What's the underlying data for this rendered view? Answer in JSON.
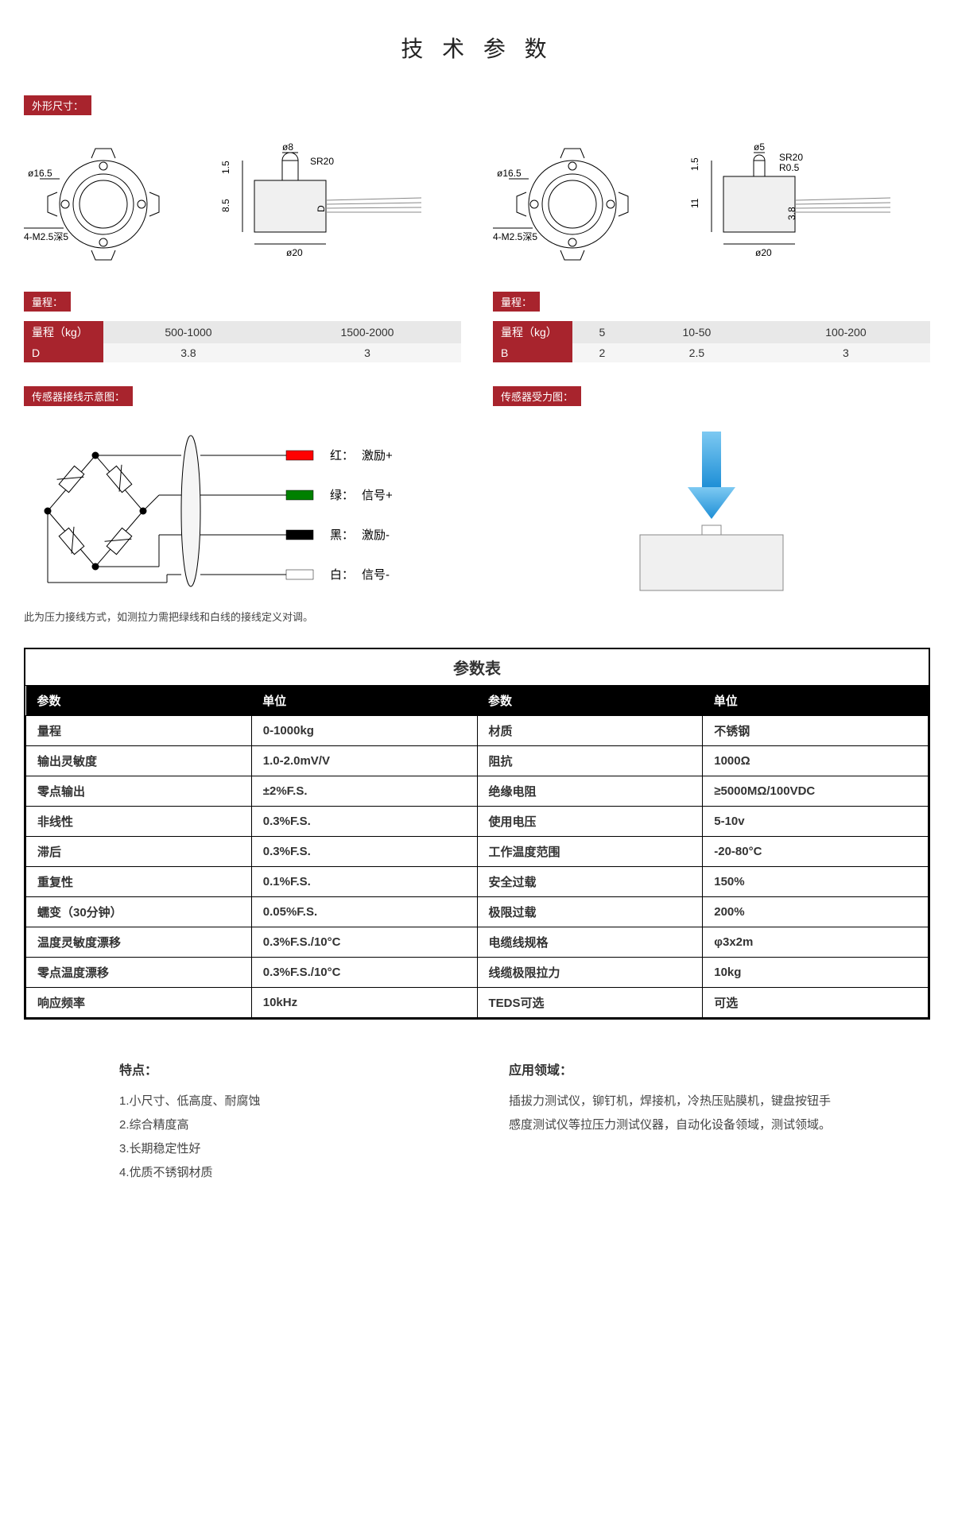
{
  "title": "技 术 参 数",
  "tags": {
    "dimensions": "外形尺寸：",
    "range": "量程：",
    "wiring": "传感器接线示意图：",
    "force": "传感器受力图："
  },
  "diagram_labels": {
    "d16_5": "ø16.5",
    "m25": "4-M2.5深5",
    "d8": "ø8",
    "d5": "ø5",
    "sr20": "SR20",
    "r05": "R0.5",
    "d20": "ø20",
    "n1_5": "1.5",
    "n8_5": "8.5",
    "n11": "11",
    "n3_8": "3.8",
    "D": "D",
    "B": "B"
  },
  "range_left": {
    "header_label": "量程（kg）",
    "row1": [
      "500-1000",
      "1500-2000"
    ],
    "row2_label": "D",
    "row2": [
      "3.8",
      "3"
    ]
  },
  "range_right": {
    "header_label": "量程（kg）",
    "row1": [
      "5",
      "10-50",
      "100-200"
    ],
    "row2_label": "B",
    "row2": [
      "2",
      "2.5",
      "3"
    ]
  },
  "wiring": {
    "items": [
      {
        "color": "#ff0000",
        "name": "红：",
        "label": "激励+"
      },
      {
        "color": "#008000",
        "name": "绿：",
        "label": "信号+"
      },
      {
        "color": "#000000",
        "name": "黑：",
        "label": "激励-"
      },
      {
        "color": "#ffffff",
        "name": "白：",
        "label": "信号-"
      }
    ],
    "note": "此为压力接线方式，如测拉力需把绿线和白线的接线定义对调。"
  },
  "param_table": {
    "title": "参数表",
    "headers": [
      "参数",
      "单位",
      "参数",
      "单位"
    ],
    "rows": [
      [
        "量程",
        "0-1000kg",
        "材质",
        "不锈钢"
      ],
      [
        "输出灵敏度",
        "1.0-2.0mV/V",
        "阻抗",
        "1000Ω"
      ],
      [
        "零点输出",
        "±2%F.S.",
        "绝缘电阻",
        "≥5000MΩ/100VDC"
      ],
      [
        "非线性",
        "0.3%F.S.",
        "使用电压",
        "5-10v"
      ],
      [
        "滞后",
        "0.3%F.S.",
        "工作温度范围",
        "-20-80°C"
      ],
      [
        "重复性",
        "0.1%F.S.",
        "安全过载",
        "150%"
      ],
      [
        "蠕变（30分钟）",
        "0.05%F.S.",
        "极限过载",
        "200%"
      ],
      [
        "温度灵敏度漂移",
        "0.3%F.S./10°C",
        "电缆线规格",
        "φ3x2m"
      ],
      [
        "零点温度漂移",
        "0.3%F.S./10°C",
        "线缆极限拉力",
        "10kg"
      ],
      [
        "响应频率",
        "10kHz",
        "TEDS可选",
        "可选"
      ]
    ]
  },
  "features": {
    "heading": "特点：",
    "items": [
      "1.小尺寸、低高度、耐腐蚀",
      "2.综合精度高",
      "3.长期稳定性好",
      "4.优质不锈钢材质"
    ]
  },
  "applications": {
    "heading": "应用领域：",
    "text": "插拔力测试仪，铆钉机，焊接机，冷热压贴膜机，键盘按钮手感度测试仪等拉压力测试仪器，自动化设备领域，测试领域。"
  },
  "colors": {
    "brand_red": "#a8242d",
    "header_black": "#000000",
    "grey_light": "#e8e8e8",
    "grey_lighter": "#f5f5f5",
    "arrow_blue": "#3aa7e8"
  }
}
